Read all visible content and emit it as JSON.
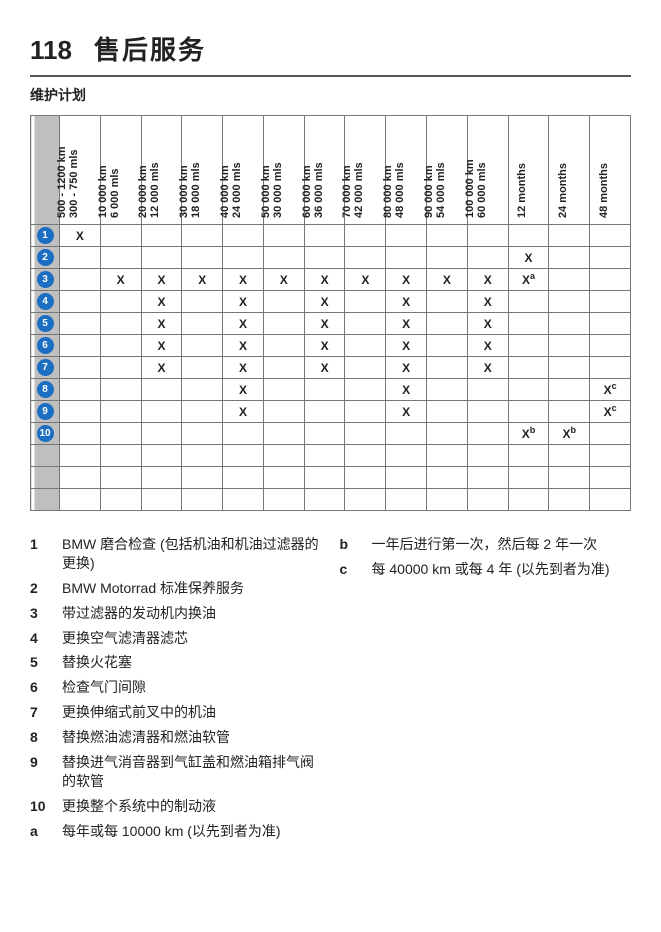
{
  "page_number": "118",
  "title": "售后服务",
  "subtitle": "维护计划",
  "colors": {
    "circle_bg": "#1b6ec2",
    "circle_fg": "#ffffff",
    "idx_bg": "#bfbfbf",
    "border": "#777777"
  },
  "columns": [
    {
      "l1": "500 - 1200 km",
      "l2": "300 - 750 mls"
    },
    {
      "l1": "10 000 km",
      "l2": "6 000 mls"
    },
    {
      "l1": "20 000 km",
      "l2": "12 000 mls"
    },
    {
      "l1": "30 000 km",
      "l2": "18 000 mls"
    },
    {
      "l1": "40 000 km",
      "l2": "24 000 mls"
    },
    {
      "l1": "50 000 km",
      "l2": "30 000 mls"
    },
    {
      "l1": "60 000 km",
      "l2": "36 000 mls"
    },
    {
      "l1": "70 000 km",
      "l2": "42 000 mls"
    },
    {
      "l1": "80 000 km",
      "l2": "48 000 mls"
    },
    {
      "l1": "90 000 km",
      "l2": "54 000 mls"
    },
    {
      "l1": "100 000 km",
      "l2": "60 000 mls"
    },
    {
      "l1": "12 months",
      "l2": ""
    },
    {
      "l1": "24 months",
      "l2": ""
    },
    {
      "l1": "48 months",
      "l2": ""
    }
  ],
  "rows": [
    {
      "idx": "1",
      "cells": [
        "X",
        "",
        "",
        "",
        "",
        "",
        "",
        "",
        "",
        "",
        "",
        "",
        "",
        ""
      ]
    },
    {
      "idx": "2",
      "cells": [
        "",
        "",
        "",
        "",
        "",
        "",
        "",
        "",
        "",
        "",
        "",
        "X",
        "",
        ""
      ]
    },
    {
      "idx": "3",
      "cells": [
        "",
        "X",
        "X",
        "X",
        "X",
        "X",
        "X",
        "X",
        "X",
        "X",
        "X",
        "X^a",
        "",
        ""
      ]
    },
    {
      "idx": "4",
      "cells": [
        "",
        "",
        "X",
        "",
        "X",
        "",
        "X",
        "",
        "X",
        "",
        "X",
        "",
        "",
        ""
      ]
    },
    {
      "idx": "5",
      "cells": [
        "",
        "",
        "X",
        "",
        "X",
        "",
        "X",
        "",
        "X",
        "",
        "X",
        "",
        "",
        ""
      ]
    },
    {
      "idx": "6",
      "cells": [
        "",
        "",
        "X",
        "",
        "X",
        "",
        "X",
        "",
        "X",
        "",
        "X",
        "",
        "",
        ""
      ]
    },
    {
      "idx": "7",
      "cells": [
        "",
        "",
        "X",
        "",
        "X",
        "",
        "X",
        "",
        "X",
        "",
        "X",
        "",
        "",
        ""
      ]
    },
    {
      "idx": "8",
      "cells": [
        "",
        "",
        "",
        "",
        "X",
        "",
        "",
        "",
        "X",
        "",
        "",
        "",
        "",
        "X^c"
      ]
    },
    {
      "idx": "9",
      "cells": [
        "",
        "",
        "",
        "",
        "X",
        "",
        "",
        "",
        "X",
        "",
        "",
        "",
        "",
        "X^c"
      ]
    },
    {
      "idx": "10",
      "cells": [
        "",
        "",
        "",
        "",
        "",
        "",
        "",
        "",
        "",
        "",
        "",
        "X^b",
        "X^b",
        ""
      ]
    }
  ],
  "legend_left": [
    {
      "n": "1",
      "t": "BMW 磨合检查 (包括机油和机油过滤器的更换)"
    },
    {
      "n": "2",
      "t": "BMW Motorrad 标准保养服务"
    },
    {
      "n": "3",
      "t": "带过滤器的发动机内换油"
    },
    {
      "n": "4",
      "t": "更换空气滤清器滤芯"
    },
    {
      "n": "5",
      "t": "替换火花塞"
    },
    {
      "n": "6",
      "t": "检查气门间隙"
    },
    {
      "n": "7",
      "t": "更换伸缩式前叉中的机油"
    },
    {
      "n": "8",
      "t": "替换燃油滤清器和燃油软管"
    },
    {
      "n": "9",
      "t": "替换进气消音器到气缸盖和燃油箱排气阀的软管"
    },
    {
      "n": "10",
      "t": "更换整个系统中的制动液"
    },
    {
      "n": "a",
      "t": "每年或每 10000 km (以先到者为准)"
    }
  ],
  "legend_right": [
    {
      "n": "b",
      "t": "一年后进行第一次，然后每 2 年一次"
    },
    {
      "n": "c",
      "t": "每 40000 km 或每 4 年 (以先到者为准)"
    }
  ]
}
